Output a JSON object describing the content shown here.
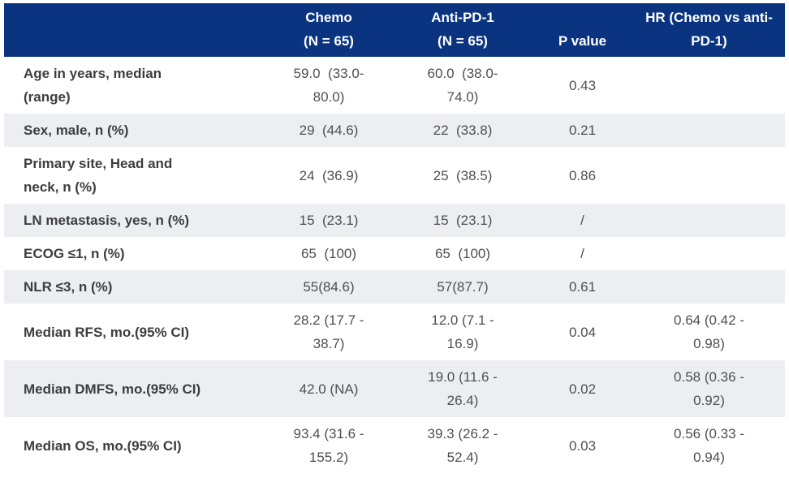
{
  "colors": {
    "header_bg": "#0a3480",
    "header_text": "#ffffff",
    "row_alt_bg": "#eceef2",
    "label_text": "#3d3d3d",
    "value_text": "#4f4f4f"
  },
  "table": {
    "columns": {
      "label": "",
      "chemo": "Chemo\n(N = 65)",
      "anti_pd1": "Anti-PD-1\n(N = 65)",
      "p_value": "P value",
      "hr": "HR (Chemo vs anti-\nPD-1)"
    },
    "rows": [
      {
        "label": "Age in years, median\n(range)",
        "chemo": "59.0  (33.0-\n80.0)",
        "anti_pd1": "60.0  (38.0-\n74.0)",
        "p_value": "0.43",
        "hr": ""
      },
      {
        "label": "Sex, male, n (%)",
        "chemo": "29  (44.6)",
        "anti_pd1": "22  (33.8)",
        "p_value": "0.21",
        "hr": ""
      },
      {
        "label": "Primary site, Head and\nneck, n (%)",
        "chemo": "24  (36.9)",
        "anti_pd1": "25  (38.5)",
        "p_value": "0.86",
        "hr": ""
      },
      {
        "label": "LN metastasis, yes, n (%)",
        "chemo": "15  (23.1)",
        "anti_pd1": "15  (23.1)",
        "p_value": "/",
        "hr": ""
      },
      {
        "label": "ECOG ≤1, n (%)",
        "chemo": "65  (100)",
        "anti_pd1": "65  (100)",
        "p_value": "/",
        "hr": ""
      },
      {
        "label": "NLR ≤3, n (%)",
        "chemo": "55(84.6)",
        "anti_pd1": "57(87.7)",
        "p_value": "0.61",
        "hr": ""
      },
      {
        "label": "Median RFS, mo.(95% CI)",
        "chemo": "28.2 (17.7 -\n38.7)",
        "anti_pd1": "12.0 (7.1 -\n16.9)",
        "p_value": "0.04",
        "hr": "0.64 (0.42 -\n0.98)"
      },
      {
        "label": "Median DMFS, mo.(95% CI)",
        "chemo": "42.0 (NA)",
        "anti_pd1": "19.0 (11.6 -\n26.4)",
        "p_value": "0.02",
        "hr": "0.58 (0.36 -\n0.92)"
      },
      {
        "label": "Median OS, mo.(95% CI)",
        "chemo": "93.4 (31.6 -\n155.2)",
        "anti_pd1": "39.3 (26.2 -\n52.4)",
        "p_value": "0.03",
        "hr": "0.56 (0.33 -\n0.94)"
      }
    ]
  }
}
